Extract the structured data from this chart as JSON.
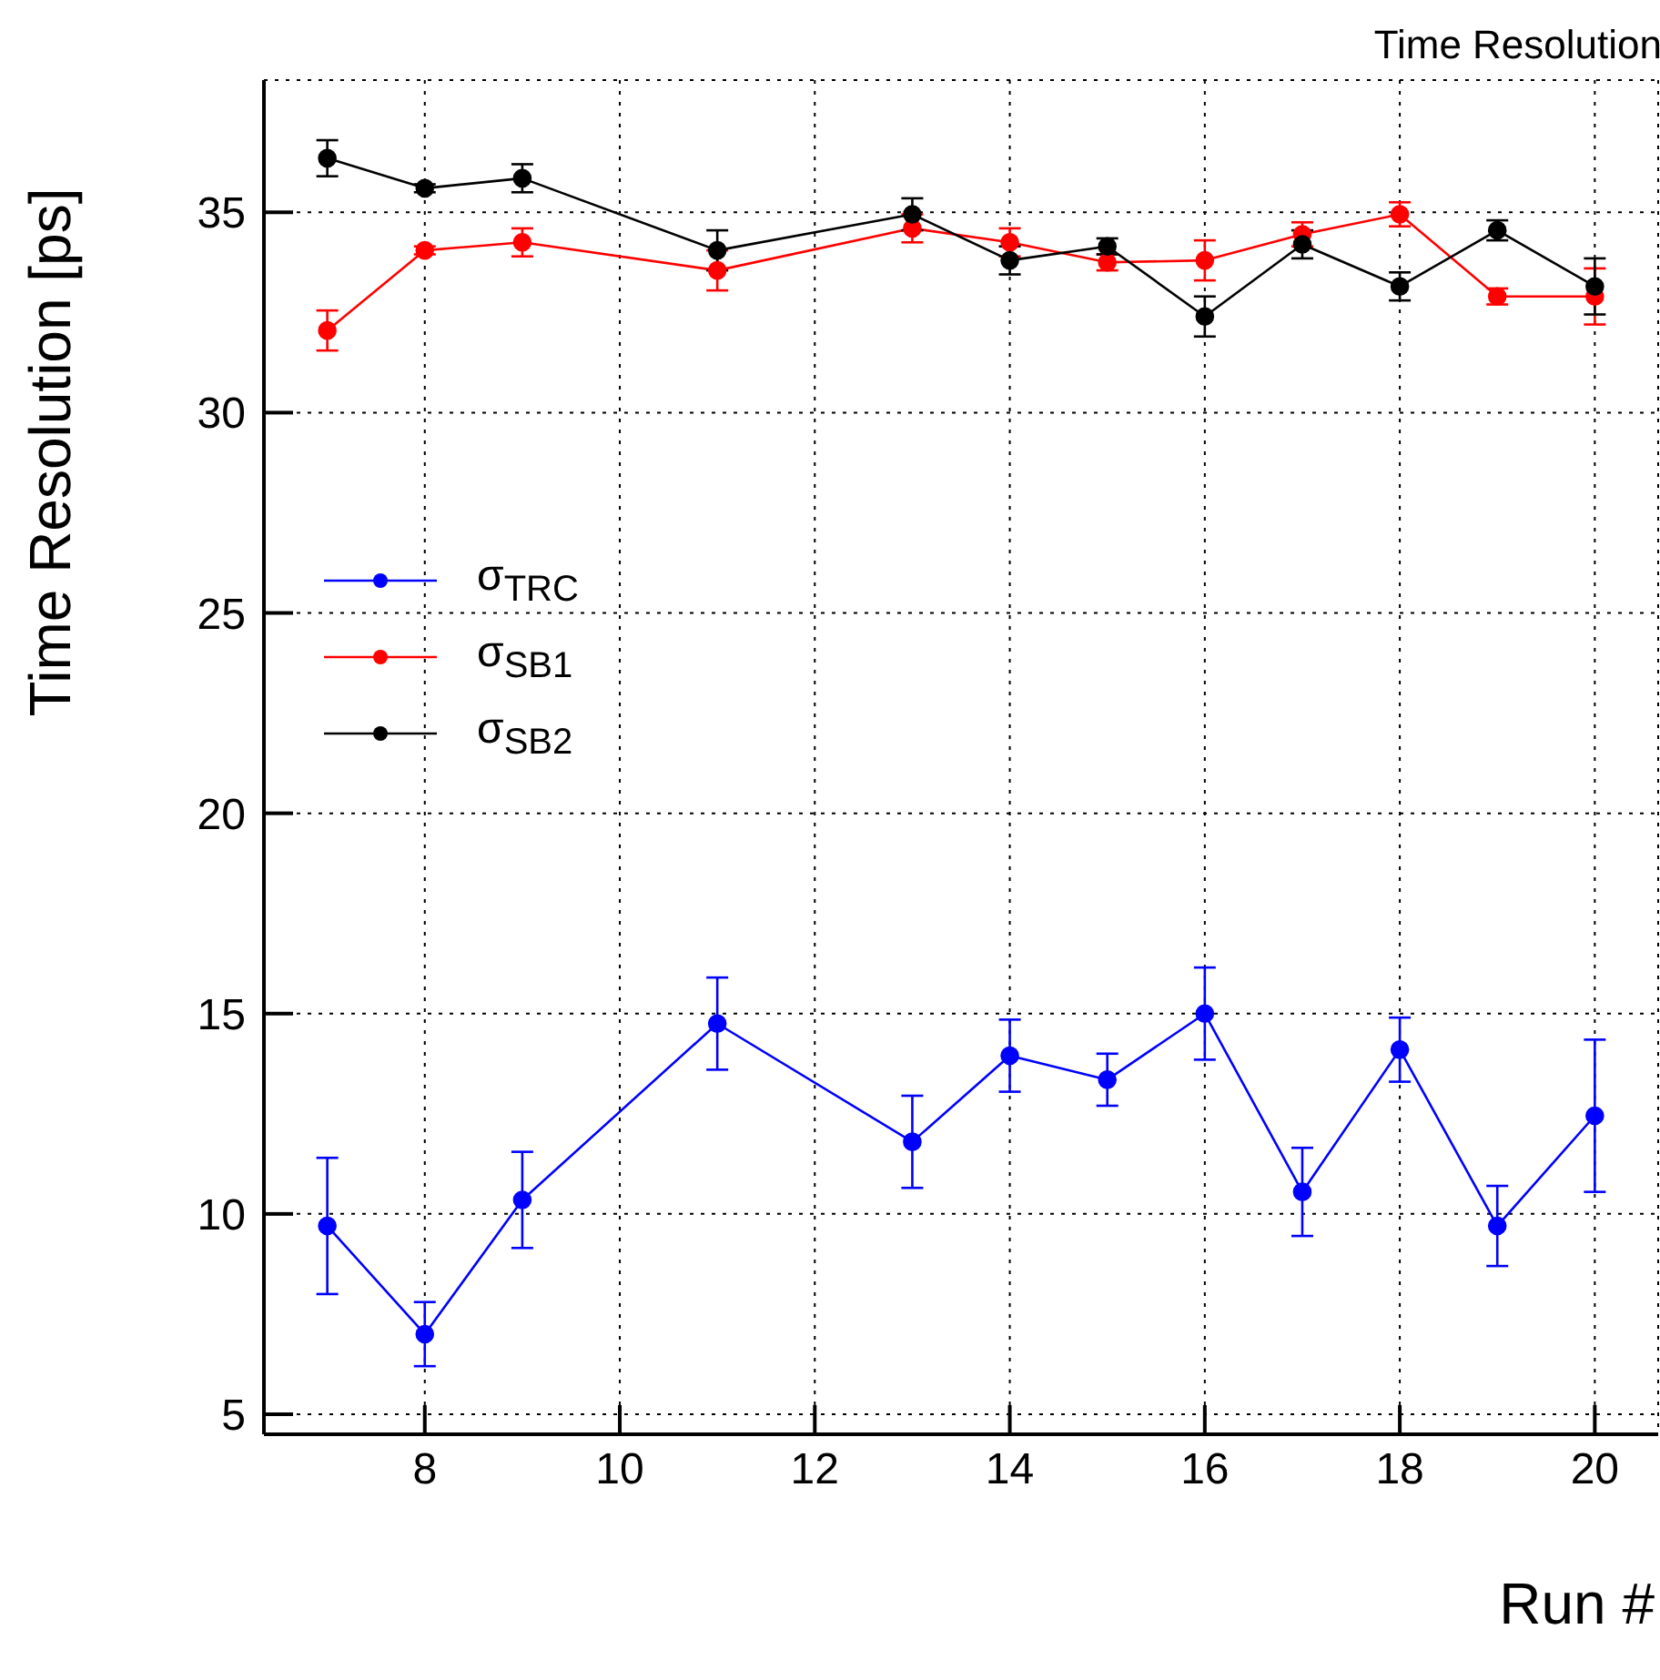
{
  "chart_data": {
    "type": "line",
    "title": "Time Resolution",
    "xlabel": "Run #",
    "ylabel": "Time Resolution [ps]",
    "x": [
      7,
      8,
      9,
      11,
      13,
      14,
      15,
      16,
      17,
      18,
      19,
      20
    ],
    "series": [
      {
        "name": "σ$_{TRC}$",
        "color": "#0000ff",
        "values": [
          9.7,
          7.0,
          10.35,
          14.75,
          11.8,
          13.95,
          13.35,
          15.0,
          10.55,
          14.1,
          9.7,
          12.45
        ],
        "errors": [
          1.7,
          0.8,
          1.2,
          1.15,
          1.15,
          0.9,
          0.65,
          1.15,
          1.1,
          0.8,
          1.0,
          1.9
        ]
      },
      {
        "name": "σ$_{SB1}$",
        "color": "#ff0000",
        "values": [
          32.05,
          34.05,
          34.25,
          33.55,
          34.6,
          34.25,
          33.75,
          33.8,
          34.45,
          34.95,
          32.9,
          32.9
        ],
        "errors": [
          0.5,
          0.1,
          0.35,
          0.5,
          0.35,
          0.35,
          0.2,
          0.5,
          0.3,
          0.3,
          0.2,
          0.7
        ]
      },
      {
        "name": "σ$_{SB2}$",
        "color": "#000000",
        "values": [
          36.35,
          35.6,
          35.85,
          34.05,
          34.95,
          33.8,
          34.15,
          32.4,
          34.2,
          33.15,
          34.55,
          33.15
        ],
        "errors": [
          0.45,
          0.1,
          0.35,
          0.5,
          0.4,
          0.35,
          0.2,
          0.5,
          0.35,
          0.35,
          0.25,
          0.7
        ]
      }
    ],
    "xlim": [
      6.35,
      20.65
    ],
    "xticks": [
      8,
      10,
      12,
      14,
      16,
      18,
      20
    ],
    "ylim": [
      4.5,
      38.3
    ],
    "yticks": [
      5,
      10,
      15,
      20,
      25,
      30,
      35
    ],
    "grid": true,
    "legend": "left",
    "marker": "circle",
    "line_style": "solid"
  }
}
